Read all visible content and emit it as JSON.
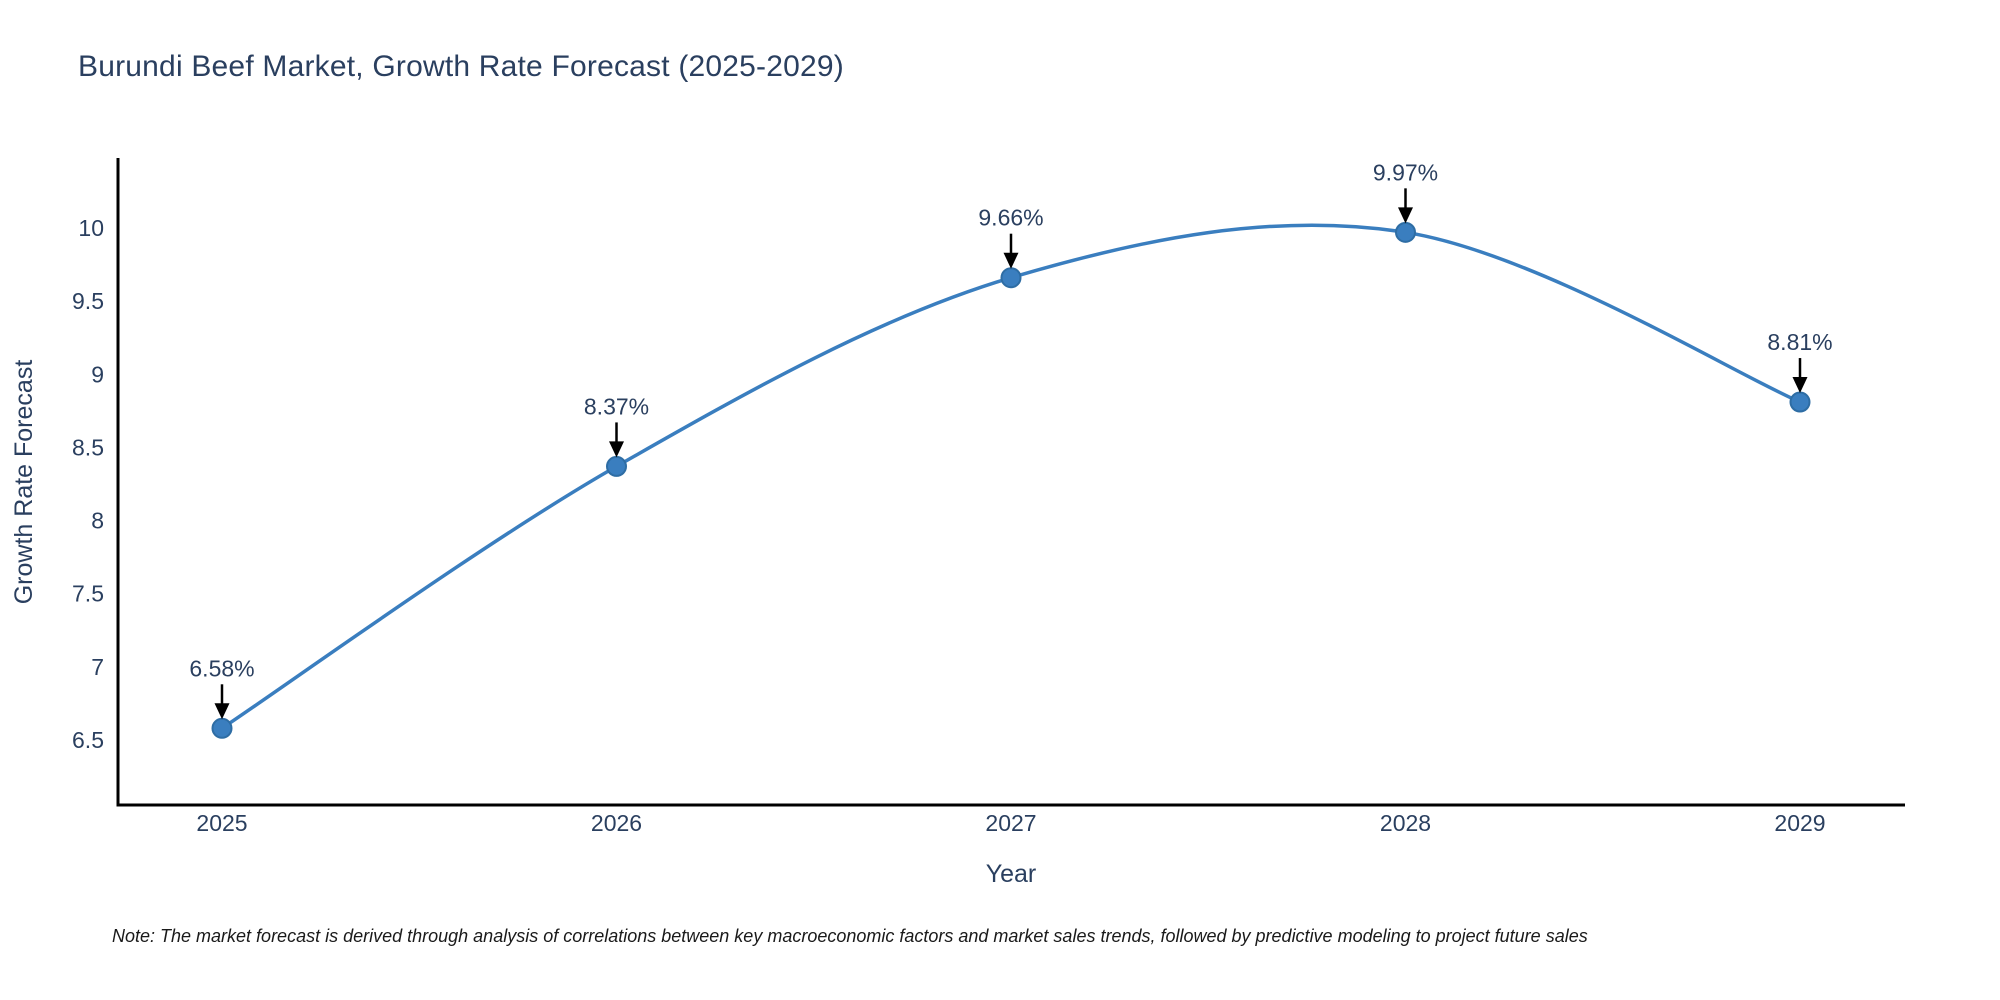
{
  "title": "Burundi Beef Market, Growth Rate Forecast (2025-2029)",
  "note": "Note: The market forecast is derived through analysis of correlations between key macroeconomic factors and market sales trends, followed by predictive modeling to project future sales",
  "chart_data": {
    "type": "line",
    "title": "Burundi Beef Market, Growth Rate Forecast (2025-2029)",
    "xlabel": "Year",
    "ylabel": "Growth Rate Forecast",
    "x": [
      2025,
      2026,
      2027,
      2028,
      2029
    ],
    "series": [
      {
        "name": "Growth Rate Forecast",
        "values": [
          6.58,
          8.37,
          9.66,
          9.97,
          8.81
        ]
      }
    ],
    "point_labels": [
      "6.58%",
      "8.37%",
      "9.66%",
      "9.97%",
      "8.81%"
    ],
    "yticks": [
      6.5,
      7,
      7.5,
      8,
      8.5,
      9,
      9.5,
      10
    ],
    "ylim": [
      6.06,
      10.47
    ],
    "line_shape": "spline",
    "grid": false,
    "legend_position": "none",
    "colors": {
      "line": "#3a7ebf",
      "marker": "#3a7ebf",
      "marker_edge": "#2e6da4",
      "axis": "#000000",
      "text": "#2a3f5f",
      "annotation_text": "#2a3f5f",
      "annotation_arrow": "#000000",
      "note_text": "#1a1a1a",
      "background": "#ffffff"
    }
  }
}
